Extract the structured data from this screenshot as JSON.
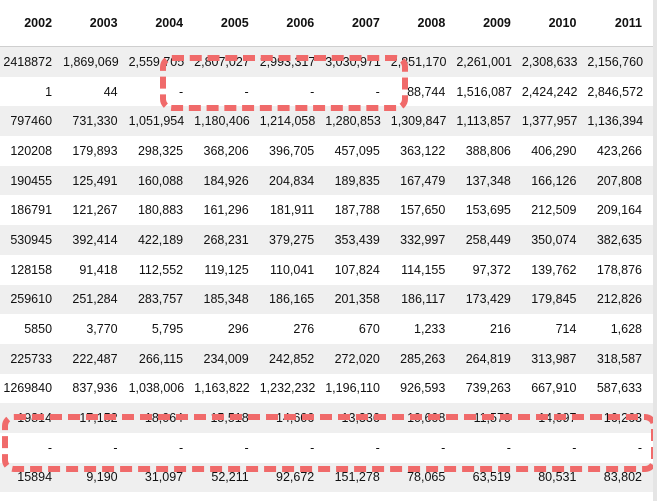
{
  "table": {
    "headers": [
      "2002",
      "2003",
      "2004",
      "2005",
      "2006",
      "2007",
      "2008",
      "2009",
      "2010",
      "2011"
    ],
    "rows": [
      [
        "2418872",
        "1,869,069",
        "2,559,705",
        "2,807,027",
        "2,993,317",
        "3,030,971",
        "2,851,170",
        "2,261,001",
        "2,308,633",
        "2,156,760"
      ],
      [
        "1",
        "44",
        "-",
        "-",
        "-",
        "-",
        "88,744",
        "1,516,087",
        "2,424,242",
        "2,846,572"
      ],
      [
        "797460",
        "731,330",
        "1,051,954",
        "1,180,406",
        "1,214,058",
        "1,280,853",
        "1,309,847",
        "1,113,857",
        "1,377,957",
        "1,136,394"
      ],
      [
        "120208",
        "179,893",
        "298,325",
        "368,206",
        "396,705",
        "457,095",
        "363,122",
        "388,806",
        "406,290",
        "423,266"
      ],
      [
        "190455",
        "125,491",
        "160,088",
        "184,926",
        "204,834",
        "189,835",
        "167,479",
        "137,348",
        "166,126",
        "207,808"
      ],
      [
        "186791",
        "121,267",
        "180,883",
        "161,296",
        "181,911",
        "187,788",
        "157,650",
        "153,695",
        "212,509",
        "209,164"
      ],
      [
        "530945",
        "392,414",
        "422,189",
        "268,231",
        "379,275",
        "353,439",
        "332,997",
        "258,449",
        "350,074",
        "382,635"
      ],
      [
        "128158",
        "91,418",
        "112,552",
        "119,125",
        "110,041",
        "107,824",
        "114,155",
        "97,372",
        "139,762",
        "178,876"
      ],
      [
        "259610",
        "251,284",
        "283,757",
        "185,348",
        "186,165",
        "201,358",
        "186,117",
        "173,429",
        "179,845",
        "212,826"
      ],
      [
        "5850",
        "3,770",
        "5,795",
        "296",
        "276",
        "670",
        "1,233",
        "216",
        "714",
        "1,628"
      ],
      [
        "225733",
        "222,487",
        "266,115",
        "234,009",
        "242,852",
        "272,020",
        "285,263",
        "264,819",
        "313,987",
        "318,587"
      ],
      [
        "1269840",
        "837,936",
        "1,038,006",
        "1,163,822",
        "1,232,232",
        "1,196,110",
        "926,593",
        "739,263",
        "667,910",
        "587,633"
      ],
      [
        "19814",
        "17,152",
        "18,064",
        "15,518",
        "14,606",
        "13,336",
        "10,608",
        "11,570",
        "14,097",
        "16,263"
      ],
      [
        "-",
        "-",
        "-",
        "-",
        "-",
        "-",
        "-",
        "-",
        "-",
        "-"
      ],
      [
        "15894",
        "9,190",
        "31,097",
        "52,211",
        "92,672",
        "151,278",
        "78,065",
        "63,519",
        "80,531",
        "83,802"
      ]
    ]
  },
  "highlight_color": "#f06a6a",
  "row_stripe_color": "#efefef"
}
